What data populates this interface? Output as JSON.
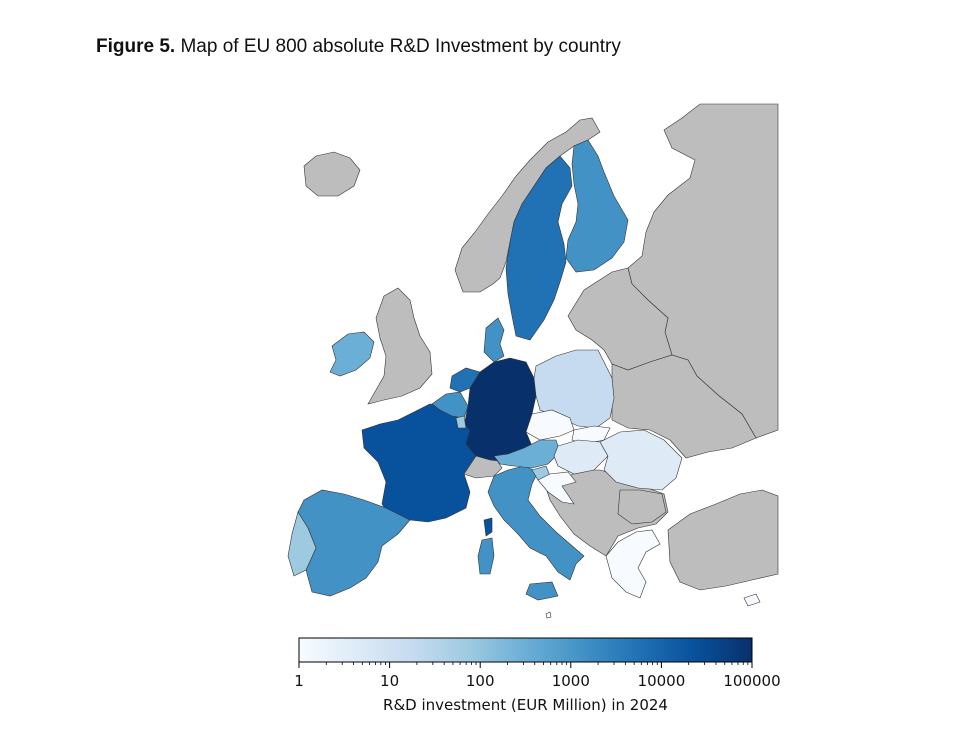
{
  "figure": {
    "label": "Figure 5.",
    "caption": "Map of EU 800 absolute R&D Investment by country"
  },
  "colors": {
    "non_eu": "#bdbdbd",
    "border": "#333333",
    "scale": [
      "#f7fbff",
      "#deebf7",
      "#c6dbef",
      "#9ecae1",
      "#6baed6",
      "#4292c6",
      "#2171b5",
      "#08519c",
      "#08306b"
    ]
  },
  "map": {
    "countries": [
      {
        "name": "Germany",
        "value": 90000
      },
      {
        "name": "France",
        "value": 25000
      },
      {
        "name": "Netherlands",
        "value": 6000
      },
      {
        "name": "Sweden",
        "value": 5000
      },
      {
        "name": "Italy",
        "value": 2000
      },
      {
        "name": "Denmark",
        "value": 2500
      },
      {
        "name": "Belgium",
        "value": 1000
      },
      {
        "name": "Spain",
        "value": 1200
      },
      {
        "name": "Finland",
        "value": 1100
      },
      {
        "name": "Ireland",
        "value": 250
      },
      {
        "name": "Austria",
        "value": 350
      },
      {
        "name": "Luxembourg",
        "value": 100
      },
      {
        "name": "Portugal",
        "value": 40
      },
      {
        "name": "Poland",
        "value": 25
      },
      {
        "name": "Slovenia",
        "value": 40
      },
      {
        "name": "Hungary",
        "value": 8
      },
      {
        "name": "Romania",
        "value": 6
      },
      {
        "name": "Czechia",
        "value": 2
      },
      {
        "name": "Slovakia",
        "value": 2
      },
      {
        "name": "Croatia",
        "value": 2
      },
      {
        "name": "Greece",
        "value": 2
      },
      {
        "name": "Cyprus",
        "value": 2
      },
      {
        "name": "Malta",
        "value": 2
      }
    ]
  },
  "legend": {
    "label": "R&D investment (EUR Million) in 2024",
    "scale": "log",
    "range": [
      1,
      100000
    ],
    "ticks": [
      "1",
      "10",
      "100",
      "1000",
      "10000",
      "100000"
    ]
  }
}
